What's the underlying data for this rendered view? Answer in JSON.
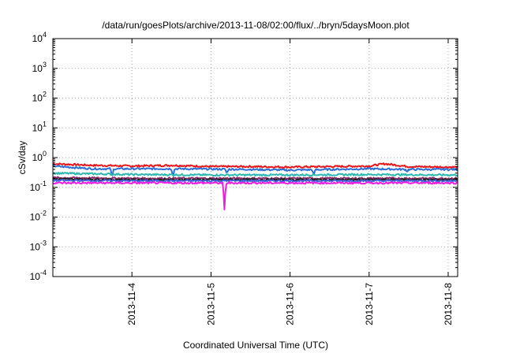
{
  "chart_data": {
    "type": "line",
    "title": "/data/run/goesPlots/archive/2013-11-08/02:00/flux/../bryn/5daysMoon.plot",
    "xlabel": "Coordinated Universal Time (UTC)",
    "ylabel": "cSv/day",
    "y_scale": "log",
    "ylim_exponent": [
      -4,
      4
    ],
    "y_tick_exponents": [
      -4,
      -3,
      -2,
      -1,
      0,
      1,
      2,
      3,
      4
    ],
    "xlim_days": [
      3.0,
      8.12
    ],
    "x_ticks": [
      {
        "day": 4,
        "label": "2013-11-4"
      },
      {
        "day": 5,
        "label": "2013-11-5"
      },
      {
        "day": 6,
        "label": "2013-11-6"
      },
      {
        "day": 7,
        "label": "2013-11-7"
      },
      {
        "day": 8,
        "label": "2013-11-8"
      }
    ],
    "grid": true,
    "series": [
      {
        "color": "#e8171b",
        "level": 0.55,
        "points": [
          [
            3.0,
            0.62
          ],
          [
            3.5,
            0.55
          ],
          [
            4.0,
            0.52
          ],
          [
            4.5,
            0.55
          ],
          [
            5.0,
            0.5
          ],
          [
            5.5,
            0.5
          ],
          [
            6.0,
            0.48
          ],
          [
            6.5,
            0.5
          ],
          [
            7.0,
            0.52
          ],
          [
            7.2,
            0.62
          ],
          [
            7.5,
            0.5
          ],
          [
            8.0,
            0.48
          ],
          [
            8.12,
            0.48
          ]
        ]
      },
      {
        "color": "#2f6fd8",
        "level": 0.42,
        "points": [
          [
            3.0,
            0.52
          ],
          [
            3.5,
            0.42
          ],
          [
            4.0,
            0.42
          ],
          [
            4.5,
            0.42
          ],
          [
            5.0,
            0.41
          ],
          [
            5.5,
            0.4
          ],
          [
            6.0,
            0.38
          ],
          [
            6.5,
            0.4
          ],
          [
            7.0,
            0.42
          ],
          [
            7.5,
            0.4
          ],
          [
            8.0,
            0.4
          ],
          [
            8.12,
            0.4
          ]
        ],
        "dips": [
          [
            3.75,
            0.22
          ],
          [
            4.52,
            0.23
          ],
          [
            5.2,
            0.3
          ],
          [
            6.3,
            0.27
          ],
          [
            7.48,
            0.33
          ]
        ]
      },
      {
        "color": "#2eb8b0",
        "level": 0.27,
        "points": [
          [
            3.0,
            0.3
          ],
          [
            4.0,
            0.27
          ],
          [
            5.0,
            0.26
          ],
          [
            6.0,
            0.26
          ],
          [
            7.0,
            0.27
          ],
          [
            8.0,
            0.26
          ],
          [
            8.12,
            0.26
          ]
        ]
      },
      {
        "color": "#8c2a6b",
        "level": 0.2,
        "points": [
          [
            3.0,
            0.21
          ],
          [
            4.0,
            0.2
          ],
          [
            5.0,
            0.2
          ],
          [
            6.0,
            0.2
          ],
          [
            7.0,
            0.2
          ],
          [
            8.0,
            0.2
          ],
          [
            8.12,
            0.2
          ]
        ]
      },
      {
        "color": "#222222",
        "level": 0.18,
        "points": [
          [
            3.0,
            0.19
          ],
          [
            4.0,
            0.18
          ],
          [
            5.0,
            0.18
          ],
          [
            6.0,
            0.18
          ],
          [
            7.0,
            0.18
          ],
          [
            8.0,
            0.18
          ],
          [
            8.12,
            0.18
          ]
        ]
      },
      {
        "color": "#4466dd",
        "level": 0.165,
        "points": [
          [
            3.0,
            0.17
          ],
          [
            4.0,
            0.165
          ],
          [
            5.0,
            0.165
          ],
          [
            6.0,
            0.165
          ],
          [
            7.0,
            0.165
          ],
          [
            8.0,
            0.165
          ],
          [
            8.12,
            0.165
          ]
        ]
      },
      {
        "color": "#ee1ee0",
        "level": 0.14,
        "points": [
          [
            3.0,
            0.14
          ],
          [
            4.0,
            0.14
          ],
          [
            5.0,
            0.14
          ],
          [
            6.0,
            0.14
          ],
          [
            7.0,
            0.14
          ],
          [
            8.0,
            0.14
          ],
          [
            8.12,
            0.14
          ]
        ],
        "dips": [
          [
            5.17,
            0.018
          ]
        ]
      }
    ]
  }
}
